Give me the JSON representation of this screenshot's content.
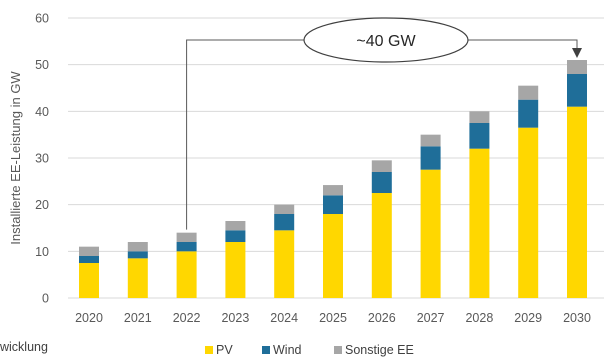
{
  "chart_data": {
    "type": "bar",
    "stacked": true,
    "categories": [
      "2020",
      "2021",
      "2022",
      "2023",
      "2024",
      "2025",
      "2026",
      "2027",
      "2028",
      "2029",
      "2030"
    ],
    "series": [
      {
        "name": "PV",
        "color": "#ffd700",
        "values": [
          7.5,
          8.5,
          10,
          12,
          14.5,
          18,
          22.5,
          27.5,
          32,
          36.5,
          41
        ]
      },
      {
        "name": "Wind",
        "color": "#1f6e99",
        "values": [
          1.5,
          1.5,
          2,
          2.5,
          3.5,
          4,
          4.5,
          5,
          5.5,
          6,
          7
        ]
      },
      {
        "name": "Sonstige EE",
        "color": "#a6a6a6",
        "values": [
          2,
          2,
          2,
          2,
          2,
          2.2,
          2.5,
          2.5,
          2.5,
          3,
          3
        ]
      }
    ],
    "ylabel": "Installierte EE-Leistung in GW",
    "ylim": [
      0,
      60
    ],
    "yticks": [
      0,
      10,
      20,
      30,
      40,
      50,
      60
    ],
    "grid": true,
    "legend": "bottom",
    "annotation": {
      "text": "~40 GW",
      "from": "2022",
      "to": "2030"
    }
  },
  "caption_fragment": "wicklung"
}
